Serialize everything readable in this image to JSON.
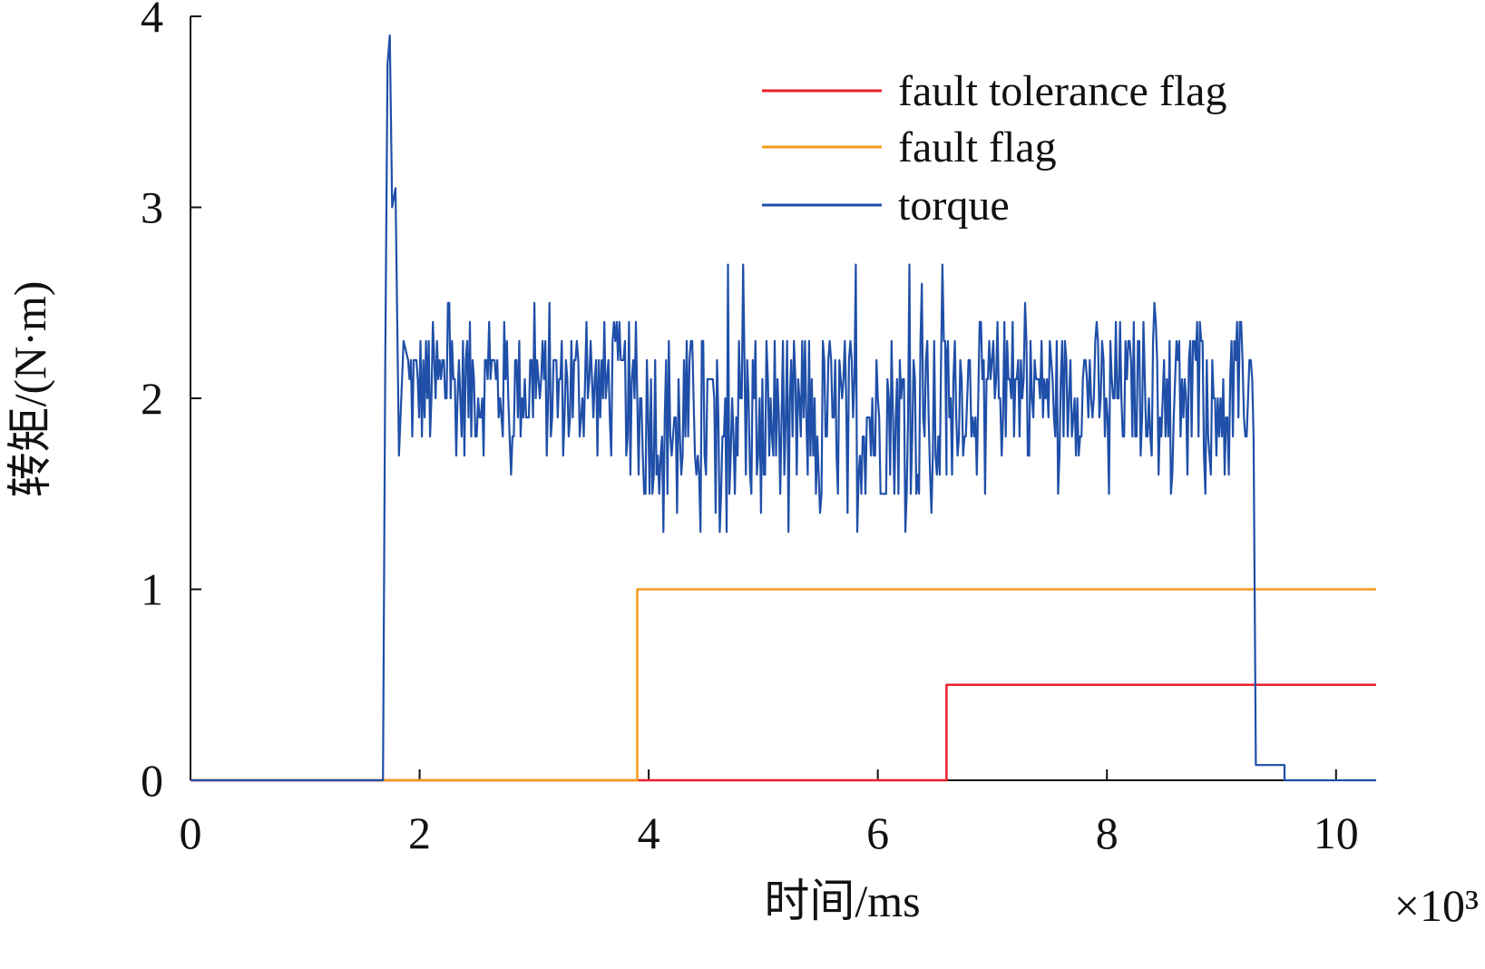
{
  "chart_data": {
    "type": "line",
    "xlabel": "时间/ms",
    "x_multiplier_label": "×10³",
    "ylabel": "转矩/(N·m)",
    "xlim": [
      0,
      10.35
    ],
    "ylim": [
      0,
      4
    ],
    "x_ticks": [
      0,
      2,
      4,
      6,
      8,
      10
    ],
    "y_ticks": [
      0,
      1,
      2,
      3,
      4
    ],
    "grid": false,
    "legend_position": "top-right",
    "legend": [
      "fault tolerance flag",
      "fault flag",
      "torque"
    ],
    "series": [
      {
        "name": "fault tolerance flag",
        "color": "#e8202a",
        "step": true,
        "points": [
          [
            0,
            0
          ],
          [
            6.6,
            0
          ],
          [
            6.6,
            0.5
          ],
          [
            10.35,
            0.5
          ]
        ]
      },
      {
        "name": "fault flag",
        "color": "#f39a1e",
        "step": true,
        "points": [
          [
            0,
            0
          ],
          [
            3.9,
            0
          ],
          [
            3.9,
            1
          ],
          [
            10.35,
            1
          ]
        ]
      },
      {
        "name": "torque",
        "color": "#1f4fa8",
        "segments": [
          {
            "x_range": [
              0,
              1.68
            ],
            "level": 0
          },
          {
            "peak": {
              "x": 1.74,
              "y": 3.9
            }
          },
          {
            "x_range": [
              1.9,
              3.9
            ],
            "mean": 2.05,
            "min": 1.6,
            "max": 2.5
          },
          {
            "x_range": [
              3.9,
              6.6
            ],
            "mean": 1.9,
            "min": 1.3,
            "max": 2.7
          },
          {
            "x_range": [
              6.6,
              9.28
            ],
            "mean": 2.05,
            "min": 1.5,
            "max": 2.5
          },
          {
            "x_range": [
              9.3,
              9.55
            ],
            "level": 0.08
          },
          {
            "x_range": [
              9.55,
              10.35
            ],
            "level": 0
          }
        ]
      }
    ]
  }
}
